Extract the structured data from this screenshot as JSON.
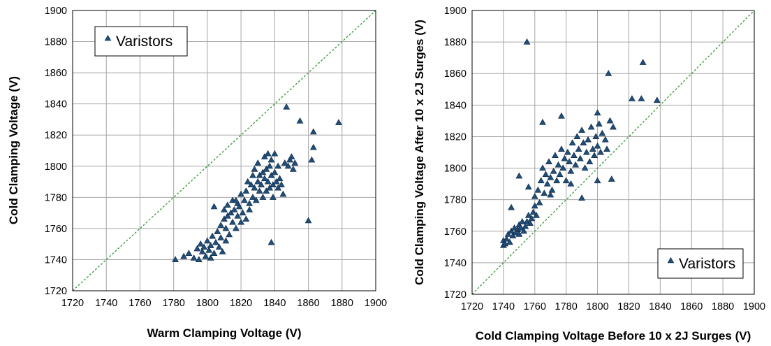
{
  "chart_data": [
    {
      "type": "scatter",
      "title": "",
      "xlabel": "Warm Clamping Voltage (V)",
      "ylabel": "Cold Clamping Voltage (V)",
      "xlim": [
        1720,
        1900
      ],
      "ylim": [
        1720,
        1900
      ],
      "xticks": [
        1720,
        1740,
        1760,
        1780,
        1800,
        1820,
        1840,
        1860,
        1880,
        1900
      ],
      "yticks": [
        1720,
        1740,
        1760,
        1780,
        1800,
        1820,
        1840,
        1860,
        1880,
        1900
      ],
      "grid": true,
      "legend": {
        "position": "top-left",
        "entries": [
          "Varistors"
        ]
      },
      "reference_line": {
        "style": "dashed",
        "color": "#2e9b2e",
        "from": [
          1720,
          1720
        ],
        "to": [
          1900,
          1900
        ]
      },
      "series": [
        {
          "name": "Varistors",
          "color": "#1f4e79",
          "marker": "triangle",
          "points": [
            [
              1781,
              1740
            ],
            [
              1786,
              1742
            ],
            [
              1789,
              1744
            ],
            [
              1792,
              1741
            ],
            [
              1794,
              1747
            ],
            [
              1795,
              1740
            ],
            [
              1796,
              1750
            ],
            [
              1797,
              1745
            ],
            [
              1798,
              1748
            ],
            [
              1799,
              1742
            ],
            [
              1800,
              1752
            ],
            [
              1801,
              1746
            ],
            [
              1802,
              1749
            ],
            [
              1802,
              1741
            ],
            [
              1803,
              1755
            ],
            [
              1804,
              1744
            ],
            [
              1805,
              1751
            ],
            [
              1806,
              1758
            ],
            [
              1807,
              1748
            ],
            [
              1808,
              1754
            ],
            [
              1808,
              1762
            ],
            [
              1809,
              1745
            ],
            [
              1810,
              1766
            ],
            [
              1810,
              1772
            ],
            [
              1811,
              1752
            ],
            [
              1811,
              1760
            ],
            [
              1812,
              1768
            ],
            [
              1812,
              1775
            ],
            [
              1813,
              1756
            ],
            [
              1814,
              1770
            ],
            [
              1815,
              1764
            ],
            [
              1815,
              1778
            ],
            [
              1816,
              1772
            ],
            [
              1817,
              1760
            ],
            [
              1818,
              1776
            ],
            [
              1818,
              1768
            ],
            [
              1819,
              1774
            ],
            [
              1820,
              1764
            ],
            [
              1820,
              1782
            ],
            [
              1821,
              1770
            ],
            [
              1822,
              1778
            ],
            [
              1823,
              1784
            ],
            [
              1823,
              1766
            ],
            [
              1824,
              1790
            ],
            [
              1825,
              1776
            ],
            [
              1825,
              1772
            ],
            [
              1826,
              1788
            ],
            [
              1827,
              1794
            ],
            [
              1827,
              1780
            ],
            [
              1828,
              1786
            ],
            [
              1828,
              1798
            ],
            [
              1829,
              1778
            ],
            [
              1830,
              1790
            ],
            [
              1830,
              1802
            ],
            [
              1831,
              1784
            ],
            [
              1831,
              1794
            ],
            [
              1832,
              1788
            ],
            [
              1833,
              1780
            ],
            [
              1833,
              1796
            ],
            [
              1834,
              1792
            ],
            [
              1834,
              1806
            ],
            [
              1835,
              1784
            ],
            [
              1835,
              1798
            ],
            [
              1836,
              1790
            ],
            [
              1836,
              1808
            ],
            [
              1837,
              1786
            ],
            [
              1837,
              1800
            ],
            [
              1838,
              1794
            ],
            [
              1838,
              1804
            ],
            [
              1839,
              1788
            ],
            [
              1839,
              1780
            ],
            [
              1840,
              1796
            ],
            [
              1840,
              1808
            ],
            [
              1841,
              1790
            ],
            [
              1842,
              1786
            ],
            [
              1842,
              1800
            ],
            [
              1843,
              1792
            ],
            [
              1844,
              1788
            ],
            [
              1845,
              1782
            ],
            [
              1846,
              1802
            ],
            [
              1847,
              1838
            ],
            [
              1848,
              1800
            ],
            [
              1849,
              1804
            ],
            [
              1850,
              1806
            ],
            [
              1851,
              1798
            ],
            [
              1852,
              1802
            ],
            [
              1855,
              1829
            ],
            [
              1860,
              1765
            ],
            [
              1862,
              1804
            ],
            [
              1863,
              1812
            ],
            [
              1863,
              1822
            ],
            [
              1878,
              1828
            ],
            [
              1838,
              1751
            ],
            [
              1804,
              1774
            ],
            [
              1817,
              1778
            ]
          ]
        }
      ]
    },
    {
      "type": "scatter",
      "title": "",
      "xlabel": "Cold Clamping Voltage Before 10 x 2J Surges (V)",
      "ylabel": "Cold Clamping Voltage After 10 x 2J Surges (V)",
      "xlim": [
        1720,
        1900
      ],
      "ylim": [
        1720,
        1900
      ],
      "xticks": [
        1720,
        1740,
        1760,
        1780,
        1800,
        1820,
        1840,
        1860,
        1880,
        1900
      ],
      "yticks": [
        1720,
        1740,
        1760,
        1780,
        1800,
        1820,
        1840,
        1860,
        1880,
        1900
      ],
      "grid": true,
      "legend": {
        "position": "bottom-right",
        "entries": [
          "Varistors"
        ]
      },
      "reference_line": {
        "style": "dashed",
        "color": "#2e9b2e",
        "from": [
          1720,
          1720
        ],
        "to": [
          1900,
          1900
        ]
      },
      "series": [
        {
          "name": "Varistors",
          "color": "#1f4e79",
          "marker": "triangle",
          "points": [
            [
              1740,
              1751
            ],
            [
              1740,
              1754
            ],
            [
              1741,
              1752
            ],
            [
              1742,
              1755
            ],
            [
              1743,
              1758
            ],
            [
              1744,
              1753
            ],
            [
              1745,
              1760
            ],
            [
              1746,
              1757
            ],
            [
              1747,
              1762
            ],
            [
              1748,
              1759
            ],
            [
              1749,
              1761
            ],
            [
              1750,
              1764
            ],
            [
              1750,
              1758
            ],
            [
              1751,
              1762
            ],
            [
              1752,
              1766
            ],
            [
              1753,
              1760
            ],
            [
              1754,
              1763
            ],
            [
              1755,
              1766
            ],
            [
              1756,
              1770
            ],
            [
              1757,
              1765
            ],
            [
              1758,
              1768
            ],
            [
              1759,
              1772
            ],
            [
              1760,
              1776
            ],
            [
              1760,
              1782
            ],
            [
              1761,
              1770
            ],
            [
              1762,
              1786
            ],
            [
              1763,
              1778
            ],
            [
              1764,
              1792
            ],
            [
              1765,
              1800
            ],
            [
              1766,
              1784
            ],
            [
              1767,
              1796
            ],
            [
              1768,
              1790
            ],
            [
              1769,
              1804
            ],
            [
              1770,
              1794
            ],
            [
              1771,
              1786
            ],
            [
              1772,
              1798
            ],
            [
              1773,
              1808
            ],
            [
              1774,
              1792
            ],
            [
              1775,
              1802
            ],
            [
              1776,
              1796
            ],
            [
              1777,
              1812
            ],
            [
              1778,
              1800
            ],
            [
              1779,
              1806
            ],
            [
              1780,
              1792
            ],
            [
              1781,
              1810
            ],
            [
              1782,
              1804
            ],
            [
              1783,
              1798
            ],
            [
              1784,
              1816
            ],
            [
              1785,
              1808
            ],
            [
              1786,
              1802
            ],
            [
              1787,
              1820
            ],
            [
              1788,
              1812
            ],
            [
              1789,
              1806
            ],
            [
              1790,
              1824
            ],
            [
              1791,
              1816
            ],
            [
              1792,
              1800
            ],
            [
              1793,
              1810
            ],
            [
              1794,
              1818
            ],
            [
              1795,
              1804
            ],
            [
              1796,
              1826
            ],
            [
              1797,
              1812
            ],
            [
              1798,
              1808
            ],
            [
              1799,
              1820
            ],
            [
              1800,
              1814
            ],
            [
              1801,
              1828
            ],
            [
              1802,
              1810
            ],
            [
              1803,
              1822
            ],
            [
              1805,
              1818
            ],
            [
              1806,
              1812
            ],
            [
              1807,
              1860
            ],
            [
              1808,
              1830
            ],
            [
              1809,
              1793
            ],
            [
              1810,
              1826
            ],
            [
              1750,
              1795
            ],
            [
              1755,
              1880
            ],
            [
              1765,
              1829
            ],
            [
              1777,
              1833
            ],
            [
              1800,
              1835
            ],
            [
              1822,
              1844
            ],
            [
              1828,
              1844
            ],
            [
              1829,
              1867
            ],
            [
              1838,
              1843
            ],
            [
              1745,
              1775
            ],
            [
              1756,
              1788
            ],
            [
              1790,
              1781
            ],
            [
              1800,
              1792
            ],
            [
              1770,
              1783
            ],
            [
              1783,
              1790
            ]
          ]
        }
      ]
    }
  ]
}
